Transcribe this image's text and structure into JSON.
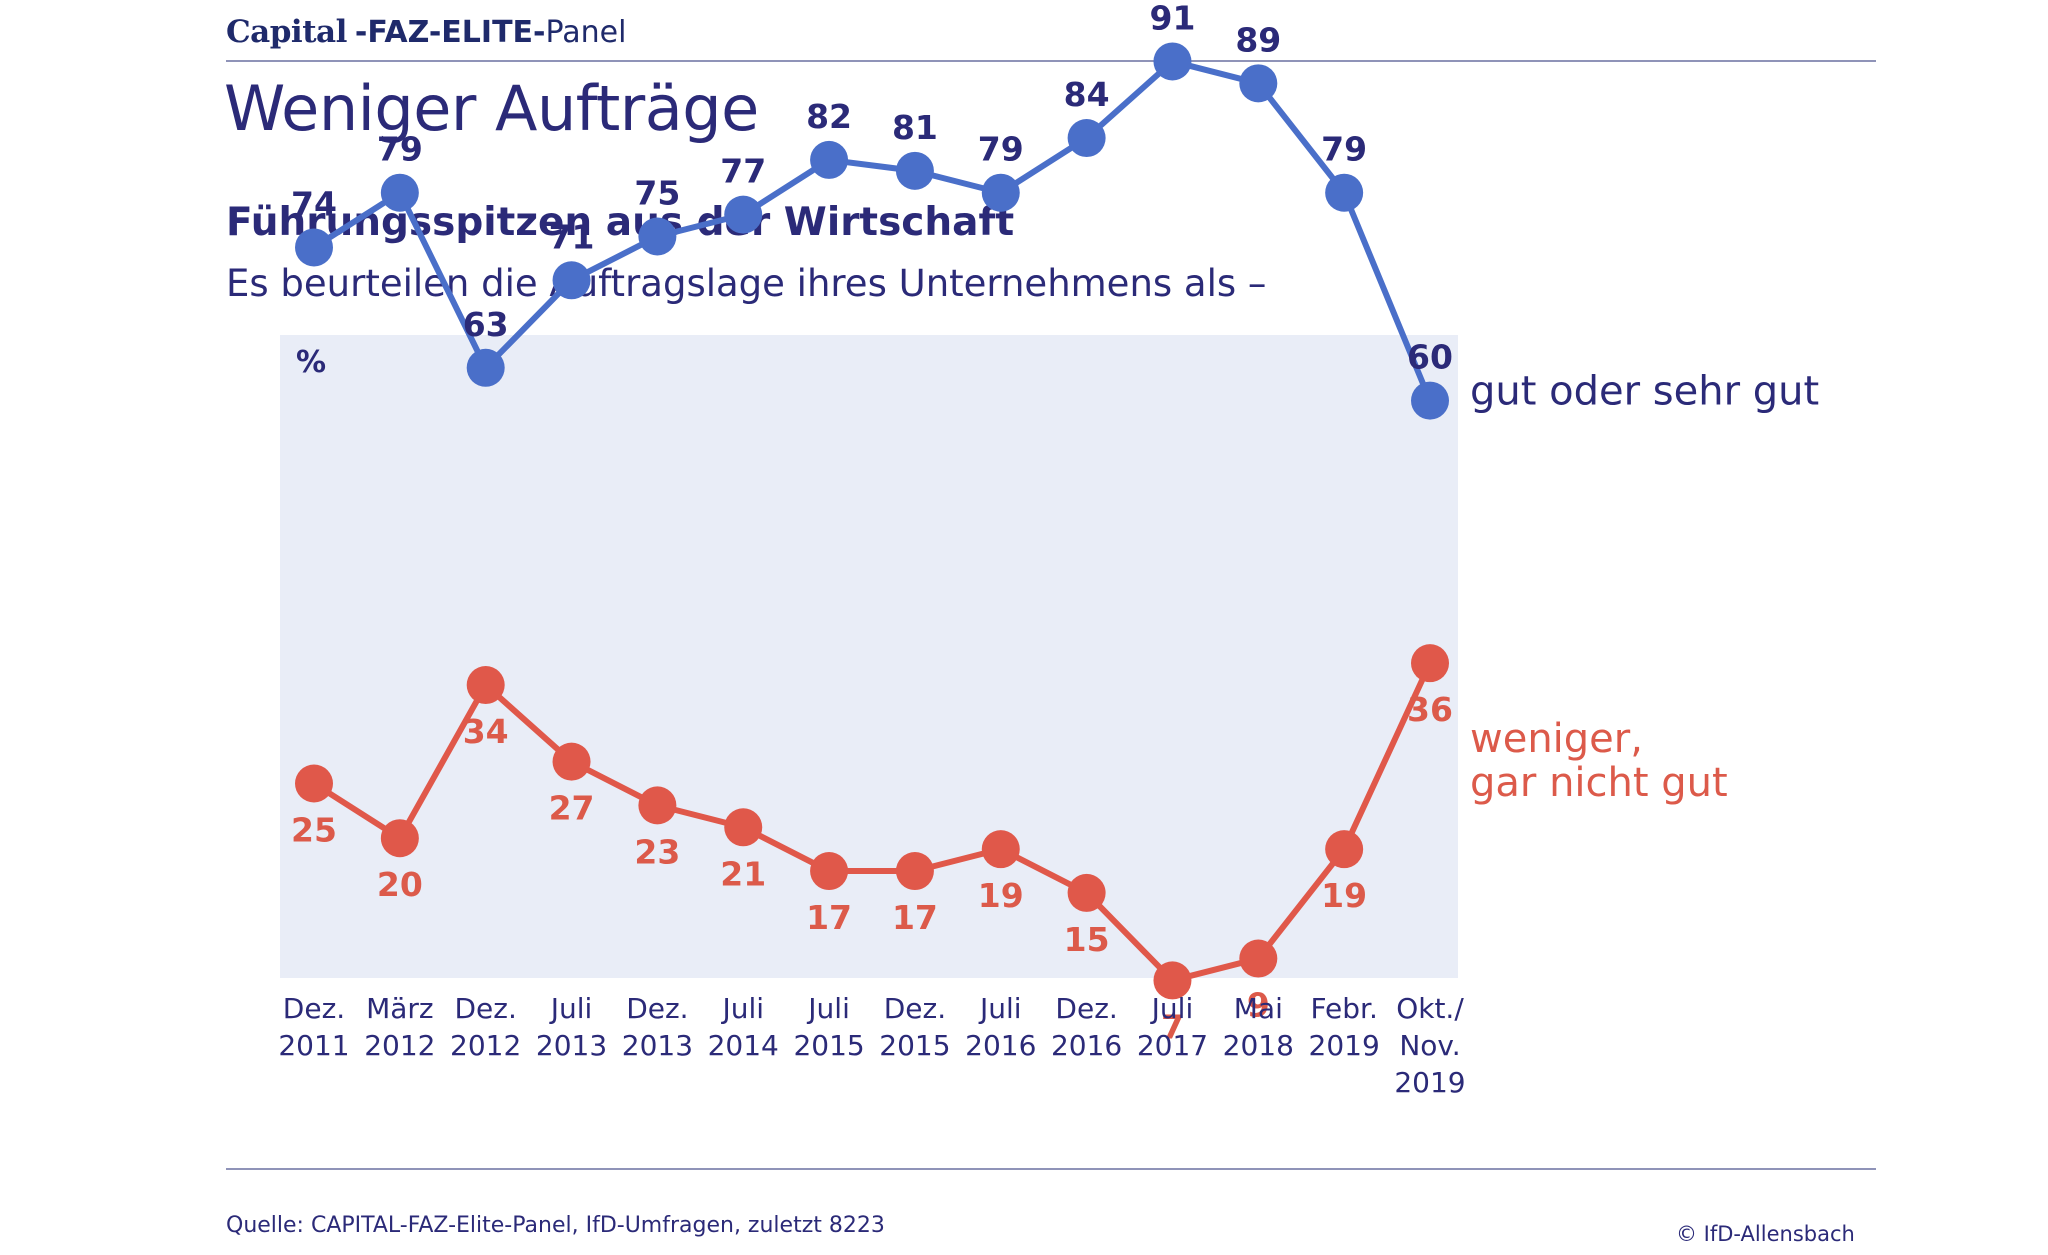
{
  "header": {
    "brand_capital": "Capital",
    "brand_faz_elite": "-FAZ-ELITE-",
    "brand_panel": "Panel"
  },
  "title": "Weniger Aufträge",
  "subtitle": "Führungsspitzen aus der Wirtschaft",
  "question": "Es beurteilen die Auftragslage ihres Unternehmens als –",
  "footer": {
    "source": "Quelle: CAPITAL-FAZ-Elite-Panel, IfD-Umfragen, zuletzt 8223",
    "copyright": "© IfD-Allensbach"
  },
  "colors": {
    "blue": "#4a6fc9",
    "blue_text": "#2b2a78",
    "red": "#e0584a",
    "plot_background": "#e9edf7"
  },
  "chart_data": {
    "type": "line",
    "unit_label": "%",
    "categories": [
      [
        "Dez.",
        "2011"
      ],
      [
        "März",
        "2012"
      ],
      [
        "Dez.",
        "2012"
      ],
      [
        "Juli",
        "2013"
      ],
      [
        "Dez.",
        "2013"
      ],
      [
        "Juli",
        "2014"
      ],
      [
        "Juli",
        "2015"
      ],
      [
        "Dez.",
        "2015"
      ],
      [
        "Juli",
        "2016"
      ],
      [
        "Dez.",
        "2016"
      ],
      [
        "Juli",
        "2017"
      ],
      [
        "Mai",
        "2018"
      ],
      [
        "Febr.",
        "2019"
      ],
      [
        "Okt./",
        "Nov.",
        "2019"
      ]
    ],
    "series": [
      {
        "name": "gut oder sehr gut",
        "color": "#4a6fc9",
        "values": [
          74,
          79,
          63,
          71,
          75,
          77,
          82,
          81,
          79,
          84,
          91,
          89,
          79,
          60
        ]
      },
      {
        "name": "weniger, gar nicht gut",
        "name_lines": [
          "weniger,",
          "gar nicht gut"
        ],
        "color": "#e0584a",
        "values": [
          25,
          20,
          34,
          27,
          23,
          21,
          17,
          17,
          19,
          15,
          7,
          9,
          19,
          36
        ]
      }
    ],
    "ylim": [
      0,
      100
    ],
    "grid": false,
    "legend": "right (direct labels)"
  }
}
